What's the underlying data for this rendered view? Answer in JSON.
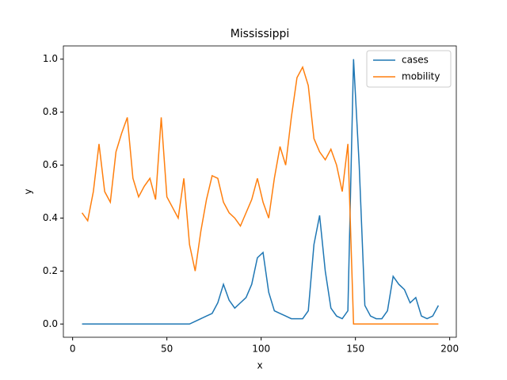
{
  "chart_data": {
    "type": "line",
    "title": "Mississippi",
    "x_label": "x",
    "y_label": "y",
    "x": [
      5,
      8,
      11,
      14,
      17,
      20,
      23,
      26,
      29,
      32,
      35,
      38,
      41,
      44,
      47,
      50,
      53,
      56,
      59,
      62,
      65,
      68,
      71,
      74,
      77,
      80,
      83,
      86,
      89,
      92,
      95,
      98,
      101,
      104,
      107,
      110,
      113,
      116,
      119,
      122,
      125,
      128,
      131,
      134,
      137,
      140,
      143,
      146,
      149,
      152,
      155,
      158,
      161,
      164,
      167,
      170,
      173,
      176,
      179,
      182,
      185,
      188,
      191,
      194
    ],
    "series": [
      {
        "name": "cases",
        "color": "#1f77b4",
        "values": [
          0,
          0,
          0,
          0,
          0,
          0,
          0,
          0,
          0,
          0,
          0,
          0,
          0,
          0,
          0,
          0,
          0,
          0,
          0,
          0,
          0.01,
          0.02,
          0.03,
          0.04,
          0.08,
          0.15,
          0.09,
          0.06,
          0.08,
          0.1,
          0.15,
          0.25,
          0.27,
          0.12,
          0.05,
          0.04,
          0.03,
          0.02,
          0.02,
          0.02,
          0.05,
          0.3,
          0.41,
          0.2,
          0.06,
          0.03,
          0.02,
          0.05,
          1.0,
          0.6,
          0.07,
          0.03,
          0.02,
          0.02,
          0.05,
          0.18,
          0.15,
          0.13,
          0.08,
          0.1,
          0.03,
          0.02,
          0.03,
          0.07
        ]
      },
      {
        "name": "mobility",
        "color": "#ff7f0e",
        "values": [
          0.42,
          0.39,
          0.5,
          0.68,
          0.5,
          0.46,
          0.65,
          0.72,
          0.78,
          0.55,
          0.48,
          0.52,
          0.55,
          0.47,
          0.78,
          0.48,
          0.44,
          0.4,
          0.55,
          0.3,
          0.2,
          0.35,
          0.47,
          0.56,
          0.55,
          0.46,
          0.42,
          0.4,
          0.37,
          0.42,
          0.47,
          0.55,
          0.46,
          0.4,
          0.55,
          0.67,
          0.6,
          0.78,
          0.93,
          0.97,
          0.9,
          0.7,
          0.65,
          0.62,
          0.66,
          0.6,
          0.5,
          0.68,
          0,
          0,
          0,
          0,
          0,
          0,
          0,
          0,
          0,
          0,
          0,
          0,
          0,
          0,
          0,
          0
        ]
      }
    ],
    "xlim": [
      -4.9,
      203.5
    ],
    "ylim": [
      -0.05,
      1.05
    ],
    "xticks": [
      0,
      50,
      100,
      150,
      200
    ],
    "yticks": [
      {
        "value": 0,
        "label": "0.0"
      },
      {
        "value": 0.2,
        "label": "0.2"
      },
      {
        "value": 0.4,
        "label": "0.4"
      },
      {
        "value": 0.6,
        "label": "0.6"
      },
      {
        "value": 0.8,
        "label": "0.8"
      },
      {
        "value": 1,
        "label": "1.0"
      }
    ],
    "legend": "upper right"
  }
}
